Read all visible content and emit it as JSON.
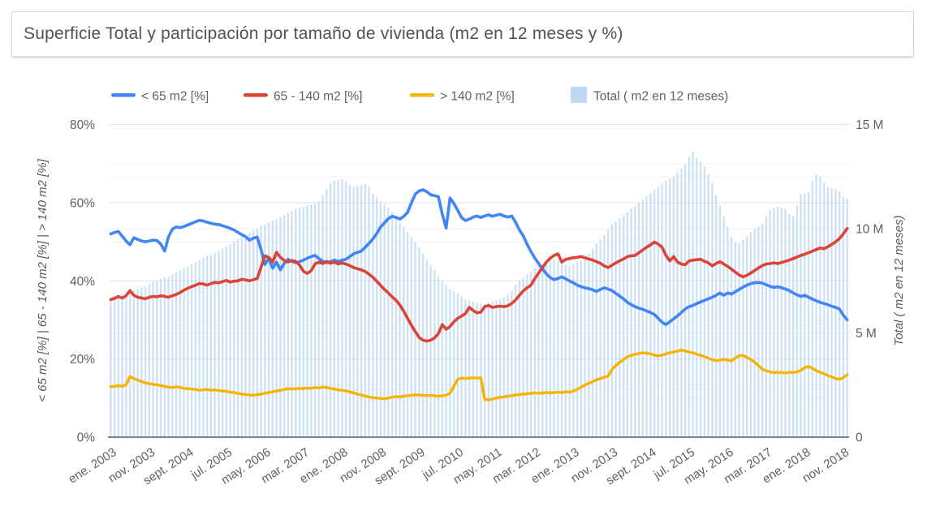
{
  "title": {
    "text": "Superficie Total y participación por tamaño de vivienda (m2 en 12 meses y %)"
  },
  "colors": {
    "series_blue": "#4285f4",
    "series_red": "#db4437",
    "series_yellow": "#f4b400",
    "series_bar": "#bed9f5",
    "grid_major": "#e3e3e3",
    "grid_minor": "#f2f2f2",
    "baseline": "#808080",
    "tick_text": "#616161",
    "axis_title_text": "#5a5a5a",
    "title_text": "#525252",
    "card_border": "#d9d9d9"
  },
  "legend": {
    "items": [
      {
        "label": "< 65 m2 [%]",
        "swatch": "line",
        "color": "#4285f4",
        "x": 137
      },
      {
        "label": "65 - 140 m2 [%]",
        "swatch": "line",
        "color": "#db4437",
        "x": 300
      },
      {
        "label": "> 140 m2 [%]",
        "swatch": "line",
        "color": "#f4b400",
        "x": 505
      },
      {
        "label": "Total ( m2 en 12 meses)",
        "swatch": "box",
        "color": "#bed9f5",
        "x": 703
      }
    ]
  },
  "chart_data": {
    "type": "combo",
    "x_start": "ene. 2003",
    "x_end": "dic. 2018",
    "n_points": 192,
    "x_tick_labels": [
      "ene. 2003",
      "nov. 2003",
      "sept. 2004",
      "jul. 2005",
      "may. 2006",
      "mar. 2007",
      "ene. 2008",
      "nov. 2008",
      "sept. 2009",
      "jul. 2010",
      "may. 2011",
      "mar. 2012",
      "ene. 2013",
      "nov. 2013",
      "sept. 2014",
      "jul. 2015",
      "may. 2016",
      "mar. 2017",
      "ene. 2018",
      "nov. 2018"
    ],
    "x_tick_step_months": 10,
    "left_axis": {
      "title": "< 65 m2 [%] | 65 - 140 m2 [%] | > 140 m2 [%]",
      "ticks": [
        "0%",
        "20%",
        "40%",
        "60%",
        "80%"
      ],
      "min": 0,
      "max": 80,
      "minor_step_pct": 10
    },
    "right_axis": {
      "title": "Total ( m2 en 12 meses)",
      "ticks": [
        "0",
        "5 M",
        "10 M",
        "15 M"
      ],
      "min": 0,
      "max": 15,
      "minor_step_m": 2.5
    },
    "series": [
      {
        "name": "< 65 m2 [%]",
        "type": "line",
        "axis": "left",
        "color": "#4285f4",
        "width": 3.6,
        "values": [
          52.0,
          52.4,
          52.6,
          51.4,
          50.2,
          49.2,
          51.0,
          50.6,
          50.2,
          50.0,
          50.2,
          50.4,
          50.3,
          49.4,
          47.6,
          51.3,
          53.2,
          53.8,
          53.6,
          53.9,
          54.3,
          54.7,
          55.1,
          55.5,
          55.3,
          55.0,
          54.7,
          54.5,
          54.4,
          54.1,
          53.8,
          53.4,
          53.0,
          52.4,
          51.8,
          51.3,
          50.4,
          50.9,
          51.2,
          48.0,
          44.2,
          45.8,
          43.2,
          44.8,
          42.8,
          44.5,
          45.5,
          45.0,
          44.6,
          44.9,
          45.3,
          45.8,
          46.2,
          46.5,
          45.7,
          45.0,
          44.6,
          44.9,
          45.3,
          44.9,
          45.3,
          45.5,
          46.2,
          46.9,
          47.3,
          47.6,
          48.6,
          49.6,
          50.7,
          52.1,
          53.8,
          54.8,
          55.9,
          56.5,
          56.2,
          55.8,
          56.5,
          57.5,
          60.0,
          62.2,
          63.0,
          63.3,
          62.8,
          62.0,
          61.8,
          61.5,
          57.0,
          53.5,
          61.2,
          59.8,
          58.0,
          56.2,
          55.4,
          55.8,
          56.3,
          56.6,
          56.2,
          56.6,
          56.9,
          56.5,
          56.8,
          57.0,
          56.6,
          56.3,
          56.6,
          55.0,
          53.0,
          51.5,
          49.3,
          47.5,
          45.8,
          44.4,
          43.0,
          41.8,
          40.8,
          40.3,
          40.6,
          41.0,
          40.5,
          40.0,
          39.5,
          38.9,
          38.5,
          38.2,
          38.0,
          37.7,
          37.3,
          37.8,
          38.2,
          37.9,
          37.5,
          36.8,
          36.1,
          35.4,
          34.5,
          33.9,
          33.4,
          33.0,
          32.7,
          32.3,
          31.9,
          31.4,
          30.4,
          29.4,
          28.8,
          29.5,
          30.3,
          31.0,
          31.9,
          32.8,
          33.4,
          33.7,
          34.2,
          34.6,
          35.0,
          35.4,
          35.8,
          36.3,
          36.9,
          36.3,
          36.9,
          36.6,
          37.2,
          37.8,
          38.4,
          38.9,
          39.3,
          39.5,
          39.6,
          39.4,
          39.0,
          38.6,
          38.3,
          38.5,
          38.2,
          37.9,
          37.5,
          36.9,
          36.4,
          36.0,
          36.3,
          35.8,
          35.3,
          34.9,
          34.5,
          34.2,
          33.9,
          33.5,
          33.2,
          32.8,
          31.2,
          30.0
        ]
      },
      {
        "name": "65 - 140 m2 [%]",
        "type": "line",
        "axis": "left",
        "color": "#db4437",
        "width": 3.6,
        "values": [
          35.2,
          35.5,
          36.0,
          35.6,
          36.2,
          37.5,
          36.3,
          35.8,
          35.6,
          35.4,
          35.8,
          36.0,
          35.9,
          36.2,
          36.0,
          35.8,
          36.2,
          36.5,
          37.0,
          37.6,
          38.1,
          38.5,
          38.9,
          39.3,
          39.2,
          38.9,
          39.3,
          39.6,
          39.5,
          39.8,
          40.1,
          39.7,
          39.9,
          40.0,
          40.4,
          40.2,
          40.0,
          40.3,
          40.6,
          43.5,
          46.4,
          46.0,
          44.8,
          47.3,
          46.0,
          45.2,
          44.8,
          45.2,
          45.0,
          44.0,
          42.4,
          41.9,
          42.6,
          44.3,
          44.8,
          44.4,
          45.0,
          44.5,
          44.8,
          44.3,
          44.6,
          44.3,
          43.9,
          43.4,
          43.1,
          42.8,
          42.4,
          41.7,
          40.9,
          39.9,
          38.8,
          37.8,
          36.9,
          35.9,
          35.0,
          33.8,
          32.2,
          30.4,
          28.6,
          27.0,
          25.5,
          24.8,
          24.6,
          24.8,
          25.4,
          26.5,
          28.8,
          27.6,
          28.3,
          29.5,
          30.4,
          31.0,
          31.6,
          33.2,
          32.4,
          31.8,
          32.0,
          33.4,
          33.7,
          33.2,
          33.4,
          33.5,
          33.4,
          33.6,
          34.2,
          35.1,
          36.3,
          37.4,
          38.2,
          38.9,
          40.6,
          42.0,
          43.4,
          44.8,
          45.8,
          46.5,
          46.9,
          44.8,
          45.5,
          45.7,
          45.9,
          46.0,
          46.2,
          45.9,
          45.6,
          45.3,
          44.9,
          44.5,
          43.8,
          43.4,
          44.0,
          44.6,
          45.1,
          45.6,
          46.2,
          46.4,
          46.5,
          47.2,
          47.9,
          48.6,
          49.2,
          49.9,
          49.4,
          48.6,
          46.5,
          45.1,
          46.2,
          44.8,
          44.3,
          44.1,
          45.1,
          45.3,
          45.4,
          45.5,
          45.0,
          44.6,
          43.8,
          44.4,
          44.9,
          44.3,
          43.7,
          43.0,
          42.2,
          41.5,
          41.0,
          41.4,
          42.0,
          42.6,
          43.3,
          43.9,
          44.3,
          44.4,
          44.6,
          44.4,
          44.7,
          45.0,
          45.3,
          45.7,
          46.1,
          46.5,
          46.8,
          47.2,
          47.6,
          48.0,
          48.4,
          48.2,
          48.7,
          49.3,
          50.0,
          50.8,
          52.0,
          53.4
        ]
      },
      {
        "name": "> 140 m2 [%]",
        "type": "line",
        "axis": "left",
        "color": "#f4b400",
        "width": 3.4,
        "values": [
          12.9,
          13.0,
          13.2,
          13.0,
          13.4,
          15.5,
          15.0,
          14.6,
          14.2,
          13.9,
          13.7,
          13.5,
          13.4,
          13.2,
          13.0,
          12.8,
          12.7,
          12.9,
          12.7,
          12.5,
          12.4,
          12.3,
          12.2,
          12.0,
          12.1,
          12.2,
          12.0,
          12.1,
          11.9,
          11.8,
          11.7,
          11.5,
          11.4,
          11.2,
          11.0,
          10.9,
          10.8,
          10.7,
          10.9,
          11.0,
          11.2,
          11.4,
          11.6,
          11.8,
          12.0,
          12.2,
          12.4,
          12.3,
          12.4,
          12.5,
          12.4,
          12.6,
          12.5,
          12.7,
          12.6,
          12.8,
          12.7,
          12.5,
          12.3,
          12.1,
          12.0,
          11.8,
          11.6,
          11.3,
          11.0,
          10.8,
          10.5,
          10.3,
          10.1,
          10.0,
          9.9,
          9.8,
          10.0,
          10.2,
          10.4,
          10.3,
          10.5,
          10.6,
          10.7,
          10.8,
          10.8,
          10.7,
          10.6,
          10.7,
          10.6,
          10.5,
          10.6,
          10.7,
          11.2,
          13.0,
          14.8,
          15.1,
          15.0,
          15.1,
          15.2,
          15.1,
          15.2,
          9.7,
          9.5,
          9.7,
          10.0,
          10.2,
          10.3,
          10.5,
          10.6,
          10.8,
          10.9,
          11.0,
          11.1,
          11.2,
          11.3,
          11.2,
          11.3,
          11.4,
          11.3,
          11.4,
          11.5,
          11.4,
          11.6,
          11.5,
          11.8,
          12.2,
          12.8,
          13.3,
          13.8,
          14.2,
          14.7,
          15.0,
          15.3,
          15.6,
          17.3,
          18.3,
          19.2,
          19.8,
          20.6,
          20.9,
          21.2,
          21.4,
          21.6,
          21.5,
          21.3,
          21.0,
          20.8,
          21.0,
          21.3,
          21.6,
          21.8,
          22.0,
          22.3,
          22.0,
          21.8,
          21.6,
          21.2,
          20.9,
          20.6,
          20.2,
          19.8,
          19.6,
          19.7,
          19.9,
          19.7,
          19.5,
          20.3,
          20.8,
          20.9,
          20.4,
          19.9,
          19.2,
          18.3,
          17.4,
          17.0,
          16.7,
          16.5,
          16.6,
          16.5,
          16.4,
          16.6,
          16.5,
          16.7,
          17.1,
          17.8,
          18.1,
          17.6,
          17.0,
          16.6,
          16.2,
          15.8,
          15.4,
          15.0,
          14.8,
          15.2,
          16.0
        ]
      },
      {
        "name": "Total ( m2 en 12 meses)",
        "type": "bar",
        "axis": "right",
        "color": "#bed9f5",
        "values": [
          6.6,
          6.7,
          6.75,
          6.85,
          6.9,
          7.0,
          7.05,
          7.1,
          7.2,
          7.25,
          7.35,
          7.45,
          7.5,
          7.6,
          7.65,
          7.7,
          7.8,
          7.9,
          8.0,
          8.1,
          8.2,
          8.3,
          8.4,
          8.5,
          8.6,
          8.7,
          8.75,
          8.85,
          8.95,
          9.05,
          9.15,
          9.25,
          9.4,
          9.5,
          9.6,
          9.7,
          9.8,
          9.9,
          10.0,
          10.15,
          10.2,
          10.3,
          10.4,
          10.45,
          10.55,
          10.65,
          10.75,
          10.85,
          10.95,
          11.0,
          11.05,
          11.1,
          11.15,
          11.2,
          11.3,
          11.6,
          11.9,
          12.15,
          12.3,
          12.35,
          12.4,
          12.25,
          12.1,
          12.0,
          12.05,
          12.1,
          12.15,
          12.0,
          11.7,
          11.5,
          11.3,
          11.15,
          11.0,
          10.8,
          10.55,
          10.3,
          10.1,
          9.85,
          9.6,
          9.35,
          9.1,
          8.8,
          8.5,
          8.25,
          8.0,
          7.75,
          7.5,
          7.3,
          7.1,
          7.0,
          6.9,
          6.75,
          6.6,
          6.55,
          6.5,
          6.45,
          6.4,
          6.4,
          6.45,
          6.5,
          6.55,
          6.6,
          6.7,
          6.85,
          7.0,
          7.3,
          7.5,
          7.65,
          7.8,
          7.95,
          8.1,
          8.2,
          8.3,
          8.45,
          8.6,
          8.55,
          8.5,
          8.4,
          8.25,
          8.2,
          8.3,
          8.4,
          8.5,
          8.65,
          8.8,
          9.05,
          9.3,
          9.5,
          9.7,
          9.95,
          10.2,
          10.35,
          10.5,
          10.65,
          10.8,
          10.95,
          11.1,
          11.25,
          11.4,
          11.55,
          11.7,
          11.85,
          12.0,
          12.15,
          12.3,
          12.4,
          12.5,
          12.7,
          12.9,
          13.1,
          13.45,
          13.7,
          13.4,
          13.2,
          13.0,
          12.6,
          12.2,
          11.6,
          11.1,
          10.6,
          10.1,
          9.6,
          9.35,
          9.3,
          9.45,
          9.65,
          9.85,
          10.0,
          10.1,
          10.25,
          10.6,
          10.9,
          11.0,
          11.05,
          11.0,
          10.95,
          10.7,
          10.6,
          11.1,
          11.65,
          11.7,
          11.75,
          12.3,
          12.6,
          12.5,
          12.2,
          12.0,
          11.95,
          11.9,
          11.8,
          11.5,
          11.45
        ]
      }
    ]
  }
}
